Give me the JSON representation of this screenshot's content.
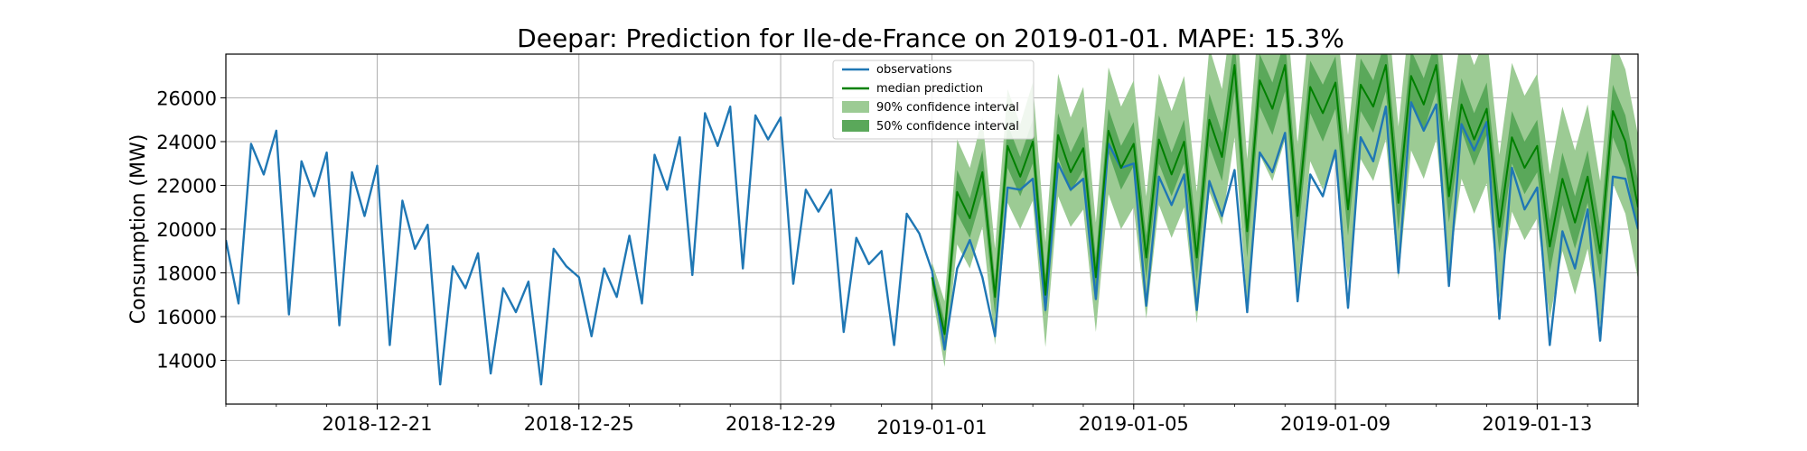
{
  "chart_data": {
    "type": "line",
    "title": "Deepar: Prediction for Ile-de-France on 2019-01-01. MAPE: 15.3%",
    "xlabel": "",
    "ylabel": "Consumption (MW)",
    "xlim": [
      "2018-12-18",
      "2019-01-15"
    ],
    "ylim": [
      12000,
      28000
    ],
    "grid": true,
    "legend_position": "top-center",
    "x_ticks": [
      "2018-12-21",
      "2018-12-25",
      "2018-12-29",
      "2019-01-01",
      "2019-01-05",
      "2019-01-09",
      "2019-01-13"
    ],
    "y_ticks": [
      14000,
      16000,
      18000,
      20000,
      22000,
      24000,
      26000
    ],
    "colors": {
      "observations": "#1f77b4",
      "median": "#008000",
      "ci90": "#9ccb94",
      "ci50": "#5aa85a"
    },
    "legend": [
      {
        "label": "observations",
        "kind": "line",
        "color": "#1f77b4"
      },
      {
        "label": "median prediction",
        "kind": "line",
        "color": "#008000"
      },
      {
        "label": "90% confidence interval",
        "kind": "patch",
        "color": "#9ccb94"
      },
      {
        "label": "50% confidence interval",
        "kind": "patch",
        "color": "#5aa85a"
      }
    ],
    "series": [
      {
        "name": "observations",
        "points": [
          [
            "2018-12-18",
            19500
          ],
          [
            "2018-12-18T06",
            16600
          ],
          [
            "2018-12-18T12",
            23900
          ],
          [
            "2018-12-18T18",
            22500
          ],
          [
            "2018-12-19",
            24500
          ],
          [
            "2018-12-19T06",
            16100
          ],
          [
            "2018-12-19T12",
            23100
          ],
          [
            "2018-12-19T18",
            21500
          ],
          [
            "2018-12-20",
            23500
          ],
          [
            "2018-12-20T06",
            15600
          ],
          [
            "2018-12-20T12",
            22600
          ],
          [
            "2018-12-20T18",
            20600
          ],
          [
            "2018-12-21",
            22900
          ],
          [
            "2018-12-21T06",
            14700
          ],
          [
            "2018-12-21T12",
            21300
          ],
          [
            "2018-12-21T18",
            19100
          ],
          [
            "2018-12-22",
            20200
          ],
          [
            "2018-12-22T06",
            12900
          ],
          [
            "2018-12-22T12",
            18300
          ],
          [
            "2018-12-22T18",
            17300
          ],
          [
            "2018-12-23",
            18900
          ],
          [
            "2018-12-23T06",
            13400
          ],
          [
            "2018-12-23T12",
            17300
          ],
          [
            "2018-12-23T18",
            16200
          ],
          [
            "2018-12-24",
            17600
          ],
          [
            "2018-12-24T06",
            12900
          ],
          [
            "2018-12-24T12",
            19100
          ],
          [
            "2018-12-24T18",
            18300
          ],
          [
            "2018-12-25",
            17800
          ],
          [
            "2018-12-25T06",
            15100
          ],
          [
            "2018-12-25T12",
            18200
          ],
          [
            "2018-12-25T18",
            16900
          ],
          [
            "2018-12-26",
            19700
          ],
          [
            "2018-12-26T06",
            16600
          ],
          [
            "2018-12-26T12",
            23400
          ],
          [
            "2018-12-26T18",
            21800
          ],
          [
            "2018-12-27",
            24200
          ],
          [
            "2018-12-27T06",
            17900
          ],
          [
            "2018-12-27T12",
            25300
          ],
          [
            "2018-12-27T18",
            23800
          ],
          [
            "2018-12-28",
            25600
          ],
          [
            "2018-12-28T06",
            18200
          ],
          [
            "2018-12-28T12",
            25200
          ],
          [
            "2018-12-28T18",
            24100
          ],
          [
            "2018-12-29",
            25100
          ],
          [
            "2018-12-29T06",
            17500
          ],
          [
            "2018-12-29T12",
            21800
          ],
          [
            "2018-12-29T18",
            20800
          ],
          [
            "2018-12-30",
            21800
          ],
          [
            "2018-12-30T06",
            15300
          ],
          [
            "2018-12-30T12",
            19600
          ],
          [
            "2018-12-30T18",
            18400
          ],
          [
            "2018-12-31",
            19000
          ],
          [
            "2018-12-31T06",
            14700
          ],
          [
            "2018-12-31T12",
            20700
          ],
          [
            "2018-12-31T18",
            19800
          ],
          [
            "2019-01-01",
            18100
          ],
          [
            "2019-01-01T06",
            14500
          ],
          [
            "2019-01-01T12",
            18200
          ],
          [
            "2019-01-01T18",
            19500
          ],
          [
            "2019-01-02",
            17800
          ],
          [
            "2019-01-02T06",
            15100
          ],
          [
            "2019-01-02T12",
            21900
          ],
          [
            "2019-01-02T18",
            21800
          ],
          [
            "2019-01-03",
            22300
          ],
          [
            "2019-01-03T06",
            16300
          ],
          [
            "2019-01-03T12",
            23000
          ],
          [
            "2019-01-03T18",
            21800
          ],
          [
            "2019-01-04",
            22300
          ],
          [
            "2019-01-04T06",
            16800
          ],
          [
            "2019-01-04T12",
            23900
          ],
          [
            "2019-01-04T18",
            22800
          ],
          [
            "2019-01-05",
            23000
          ],
          [
            "2019-01-05T06",
            16500
          ],
          [
            "2019-01-05T12",
            22400
          ],
          [
            "2019-01-05T18",
            21100
          ],
          [
            "2019-01-06",
            22500
          ],
          [
            "2019-01-06T06",
            16300
          ],
          [
            "2019-01-06T12",
            22200
          ],
          [
            "2019-01-06T18",
            20600
          ],
          [
            "2019-01-07",
            22700
          ],
          [
            "2019-01-07T06",
            16200
          ],
          [
            "2019-01-07T12",
            23500
          ],
          [
            "2019-01-07T18",
            22600
          ],
          [
            "2019-01-08",
            24400
          ],
          [
            "2019-01-08T06",
            16700
          ],
          [
            "2019-01-08T12",
            22500
          ],
          [
            "2019-01-08T18",
            21500
          ],
          [
            "2019-01-09",
            23600
          ],
          [
            "2019-01-09T06",
            16400
          ],
          [
            "2019-01-09T12",
            24200
          ],
          [
            "2019-01-09T18",
            23100
          ],
          [
            "2019-01-10",
            25600
          ],
          [
            "2019-01-10T06",
            18000
          ],
          [
            "2019-01-10T12",
            25800
          ],
          [
            "2019-01-10T18",
            24500
          ],
          [
            "2019-01-11",
            25700
          ],
          [
            "2019-01-11T06",
            17400
          ],
          [
            "2019-01-11T12",
            24800
          ],
          [
            "2019-01-11T18",
            23600
          ],
          [
            "2019-01-12",
            24900
          ],
          [
            "2019-01-12T06",
            15900
          ],
          [
            "2019-01-12T12",
            22800
          ],
          [
            "2019-01-12T18",
            20900
          ],
          [
            "2019-01-13",
            21900
          ],
          [
            "2019-01-13T06",
            14700
          ],
          [
            "2019-01-13T12",
            19900
          ],
          [
            "2019-01-13T18",
            18200
          ],
          [
            "2019-01-14",
            20900
          ],
          [
            "2019-01-14T06",
            14900
          ],
          [
            "2019-01-14T12",
            22400
          ],
          [
            "2019-01-14T18",
            22300
          ],
          [
            "2019-01-15",
            20000
          ]
        ]
      },
      {
        "name": "median prediction",
        "points": [
          [
            "2019-01-01",
            17800
          ],
          [
            "2019-01-01T06",
            15200
          ],
          [
            "2019-01-01T12",
            21700
          ],
          [
            "2019-01-01T18",
            20500
          ],
          [
            "2019-01-02",
            22600
          ],
          [
            "2019-01-02T06",
            16900
          ],
          [
            "2019-01-02T12",
            23800
          ],
          [
            "2019-01-02T18",
            22400
          ],
          [
            "2019-01-03",
            24000
          ],
          [
            "2019-01-03T06",
            17000
          ],
          [
            "2019-01-03T12",
            24300
          ],
          [
            "2019-01-03T18",
            22600
          ],
          [
            "2019-01-04",
            23700
          ],
          [
            "2019-01-04T06",
            17800
          ],
          [
            "2019-01-04T12",
            24500
          ],
          [
            "2019-01-04T18",
            22800
          ],
          [
            "2019-01-05",
            23900
          ],
          [
            "2019-01-05T06",
            18700
          ],
          [
            "2019-01-05T12",
            24100
          ],
          [
            "2019-01-05T18",
            22500
          ],
          [
            "2019-01-06",
            24000
          ],
          [
            "2019-01-06T06",
            18700
          ],
          [
            "2019-01-06T12",
            25000
          ],
          [
            "2019-01-06T18",
            23300
          ],
          [
            "2019-01-07",
            27500
          ],
          [
            "2019-01-07T06",
            19900
          ],
          [
            "2019-01-07T12",
            26800
          ],
          [
            "2019-01-07T18",
            25500
          ],
          [
            "2019-01-08",
            27500
          ],
          [
            "2019-01-08T06",
            20600
          ],
          [
            "2019-01-08T12",
            26500
          ],
          [
            "2019-01-08T18",
            25300
          ],
          [
            "2019-01-09",
            26700
          ],
          [
            "2019-01-09T06",
            20900
          ],
          [
            "2019-01-09T12",
            26600
          ],
          [
            "2019-01-09T18",
            25600
          ],
          [
            "2019-01-10",
            27500
          ],
          [
            "2019-01-10T06",
            21200
          ],
          [
            "2019-01-10T12",
            27000
          ],
          [
            "2019-01-10T18",
            25700
          ],
          [
            "2019-01-11",
            27500
          ],
          [
            "2019-01-11T06",
            21500
          ],
          [
            "2019-01-11T12",
            25700
          ],
          [
            "2019-01-11T18",
            24100
          ],
          [
            "2019-01-12",
            25500
          ],
          [
            "2019-01-12T06",
            20100
          ],
          [
            "2019-01-12T12",
            24200
          ],
          [
            "2019-01-12T18",
            22800
          ],
          [
            "2019-01-13",
            23800
          ],
          [
            "2019-01-13T06",
            19200
          ],
          [
            "2019-01-13T12",
            22300
          ],
          [
            "2019-01-13T18",
            20300
          ],
          [
            "2019-01-14",
            22400
          ],
          [
            "2019-01-14T06",
            18900
          ],
          [
            "2019-01-14T12",
            25400
          ],
          [
            "2019-01-14T18",
            24000
          ],
          [
            "2019-01-15",
            21000
          ]
        ],
        "ci50_halfwidth": [
          300,
          600,
          1000,
          900,
          1000,
          800,
          1000,
          900,
          1000,
          900,
          1000,
          900,
          1000,
          900,
          1000,
          1000,
          1000,
          1000,
          1100,
          1000,
          1000,
          1100,
          1200,
          1100,
          1200,
          1200,
          1200,
          1200,
          1200,
          1200,
          1200,
          1300,
          1200,
          1200,
          1200,
          1200,
          1200,
          1300,
          1200,
          1200,
          1200,
          1200,
          1200,
          1200,
          1200,
          1200,
          1200,
          1200,
          1200,
          1200,
          1200,
          1200,
          1200,
          1200,
          1200,
          1200,
          1200
        ],
        "ci90_halfwidth": [
          700,
          1500,
          2400,
          2300,
          2500,
          2200,
          2600,
          2400,
          2700,
          2400,
          2800,
          2500,
          2800,
          2500,
          2900,
          2800,
          2900,
          2800,
          3000,
          2900,
          3000,
          3000,
          3300,
          3100,
          3300,
          3300,
          3400,
          3300,
          3400,
          3300,
          3400,
          3500,
          3400,
          3400,
          3400,
          3400,
          3400,
          3500,
          3400,
          3400,
          3400,
          3400,
          3400,
          3400,
          3400,
          3300,
          3400,
          3300,
          3300,
          3300,
          3300,
          3300,
          3300,
          3300,
          3300,
          3300,
          3300
        ]
      }
    ]
  }
}
